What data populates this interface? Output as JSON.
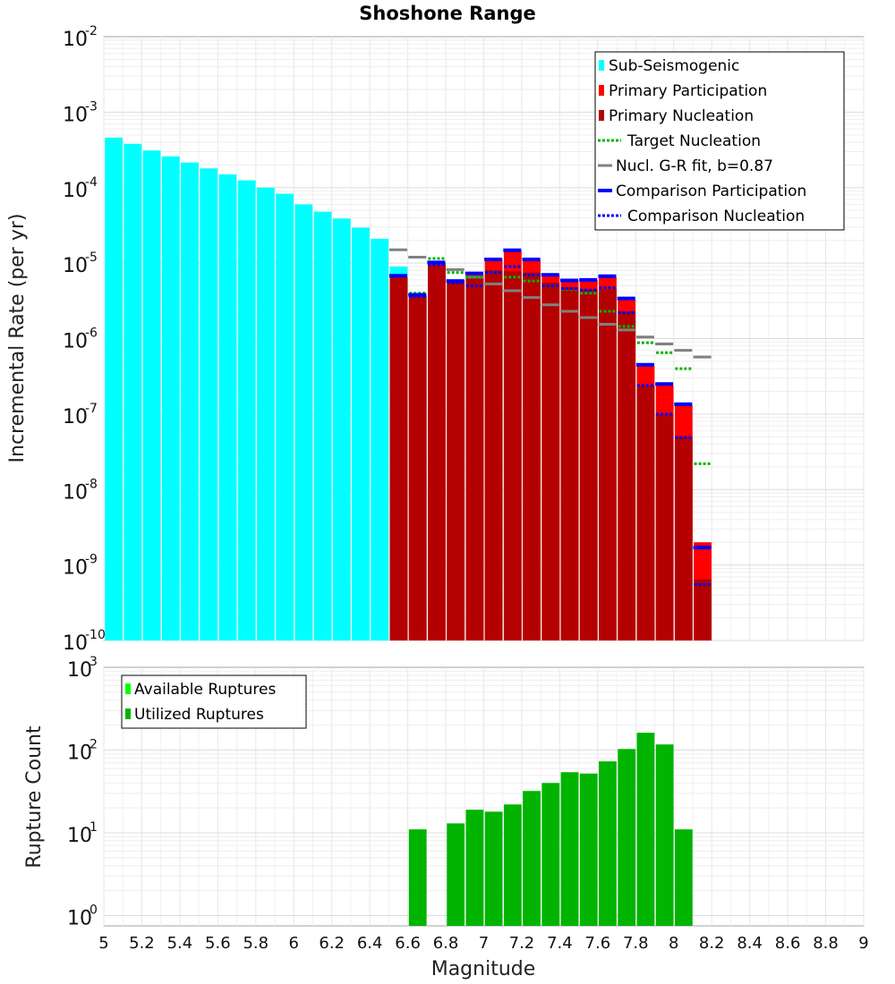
{
  "chart_data": [
    {
      "type": "bar",
      "title": "Shoshone Range",
      "xlabel": "",
      "ylabel": "Incremental Rate (per yr)",
      "yscale": "log",
      "ylim": [
        1e-10,
        0.01
      ],
      "xlim": [
        5,
        9
      ],
      "ytick_labels": [
        {
          "base": "10",
          "exp": "-10",
          "value": 1e-10
        },
        {
          "base": "10",
          "exp": "-9",
          "value": 1e-09
        },
        {
          "base": "10",
          "exp": "-8",
          "value": 1e-08
        },
        {
          "base": "10",
          "exp": "-7",
          "value": 1e-07
        },
        {
          "base": "10",
          "exp": "-6",
          "value": 1e-06
        },
        {
          "base": "10",
          "exp": "-5",
          "value": 1e-05
        },
        {
          "base": "10",
          "exp": "-4",
          "value": 0.0001
        },
        {
          "base": "10",
          "exp": "-3",
          "value": 0.001
        },
        {
          "base": "10",
          "exp": "-2",
          "value": 0.01
        }
      ],
      "legend_position": "top-right",
      "legend": [
        {
          "label": "Sub-Seismogenic",
          "color": "#00ffff",
          "style": "bar"
        },
        {
          "label": "Primary Participation",
          "color": "#ff0000",
          "style": "bar"
        },
        {
          "label": "Primary Nucleation",
          "color": "#b40000",
          "style": "bar"
        },
        {
          "label": "Target Nucleation",
          "color": "#00b400",
          "style": "dotted"
        },
        {
          "label": "Nucl. G-R fit, b=0.87",
          "color": "#808080",
          "style": "solid"
        },
        {
          "label": "Comparison Participation",
          "color": "#0000ff",
          "style": "solid-thick"
        },
        {
          "label": "Comparison Nucleation",
          "color": "#0000ff",
          "style": "dotted"
        }
      ],
      "series": [
        {
          "name": "Sub-Seismogenic",
          "color": "#00ffff",
          "x": [
            5.05,
            5.15,
            5.25,
            5.35,
            5.45,
            5.55,
            5.65,
            5.75,
            5.85,
            5.95,
            6.05,
            6.15,
            6.25,
            6.35,
            6.45,
            6.55
          ],
          "values": [
            0.00046,
            0.00038,
            0.00031,
            0.00026,
            0.000215,
            0.00018,
            0.00015,
            0.000125,
            0.0001,
            8.3e-05,
            6e-05,
            4.8e-05,
            3.9e-05,
            2.95e-05,
            2.1e-05,
            9e-06
          ]
        },
        {
          "name": "Primary Participation",
          "color": "#ff0000",
          "x": [
            6.55,
            6.65,
            6.75,
            6.85,
            6.95,
            7.05,
            7.15,
            7.25,
            7.35,
            7.45,
            7.55,
            7.65,
            7.75,
            7.85,
            7.95,
            8.05,
            8.15
          ],
          "values": [
            6.5e-06,
            3.8e-06,
            1e-05,
            6e-06,
            7e-06,
            1.1e-05,
            1.45e-05,
            1.1e-05,
            7e-06,
            6e-06,
            6e-06,
            6.5e-06,
            3.3e-06,
            4.3e-07,
            2.4e-07,
            1.3e-07,
            2e-09
          ]
        },
        {
          "name": "Primary Nucleation",
          "color": "#b40000",
          "x": [
            6.55,
            6.65,
            6.75,
            6.85,
            6.95,
            7.05,
            7.15,
            7.25,
            7.35,
            7.45,
            7.55,
            7.65,
            7.75,
            7.85,
            7.95,
            8.05,
            8.15
          ],
          "values": [
            6.5e-06,
            3.7e-06,
            1e-05,
            5.5e-06,
            6.3e-06,
            8e-06,
            7.8e-06,
            7.5e-06,
            5.5e-06,
            4.8e-06,
            4.5e-06,
            4.5e-06,
            2.3e-06,
            2.4e-07,
            1e-07,
            5e-08,
            6.5e-10
          ]
        },
        {
          "name": "Target Nucleation",
          "color": "#00b400",
          "x": [
            6.65,
            6.75,
            6.85,
            6.95,
            7.05,
            7.15,
            7.25,
            7.35,
            7.45,
            7.55,
            7.65,
            7.75,
            7.85,
            7.95,
            8.05,
            8.15
          ],
          "values": [
            4e-06,
            1.15e-05,
            7.5e-06,
            6.5e-06,
            7.5e-06,
            6.5e-06,
            5.8e-06,
            5e-06,
            4.5e-06,
            4e-06,
            2.3e-06,
            1.45e-06,
            8.8e-07,
            6.5e-07,
            4e-07,
            2.2e-08
          ]
        },
        {
          "name": "Nucl. G-R fit, b=0.87",
          "color": "#808080",
          "x": [
            6.55,
            6.65,
            6.75,
            6.85,
            6.95,
            7.05,
            7.15,
            7.25,
            7.35,
            7.45,
            7.55,
            7.65,
            7.75,
            7.85,
            7.95,
            8.05,
            8.15
          ],
          "values": [
            1.5e-05,
            1.2e-05,
            1e-05,
            8.2e-06,
            6.5e-06,
            5.3e-06,
            4.3e-06,
            3.5e-06,
            2.8e-06,
            2.3e-06,
            1.9e-06,
            1.55e-06,
            1.3e-06,
            1.05e-06,
            8.5e-07,
            7e-07,
            5.7e-07
          ]
        },
        {
          "name": "Comparison Participation",
          "color": "#0000ff",
          "x": [
            6.55,
            6.65,
            6.75,
            6.85,
            6.95,
            7.05,
            7.15,
            7.25,
            7.35,
            7.45,
            7.55,
            7.65,
            7.75,
            7.85,
            7.95,
            8.05,
            8.15
          ],
          "values": [
            6.8e-06,
            3.8e-06,
            1.02e-05,
            5.8e-06,
            7.3e-06,
            1.12e-05,
            1.48e-05,
            1.12e-05,
            7e-06,
            5.9e-06,
            6e-06,
            6.7e-06,
            3.4e-06,
            4.5e-07,
            2.5e-07,
            1.35e-07,
            1.7e-09
          ]
        },
        {
          "name": "Comparison Nucleation",
          "color": "#0000ff",
          "x": [
            6.55,
            6.65,
            6.75,
            6.85,
            6.95,
            7.05,
            7.15,
            7.25,
            7.35,
            7.45,
            7.55,
            7.65,
            7.75,
            7.85,
            7.95,
            8.05,
            8.15
          ],
          "values": [
            6.8e-06,
            3.6e-06,
            9.5e-06,
            5.5e-06,
            5e-06,
            7.5e-06,
            9e-06,
            7e-06,
            5e-06,
            4.6e-06,
            4.4e-06,
            4.7e-06,
            2.2e-06,
            2.4e-07,
            1e-07,
            4.9e-08,
            5.5e-10
          ]
        }
      ]
    },
    {
      "type": "bar",
      "title": "",
      "xlabel": "Magnitude",
      "ylabel": "Rupture Count",
      "yscale": "log",
      "ylim": [
        0.75,
        1000
      ],
      "xlim": [
        5,
        9
      ],
      "xticks": [
        "5",
        "5.2",
        "5.4",
        "5.6",
        "5.8",
        "6",
        "6.2",
        "6.4",
        "6.6",
        "6.8",
        "7",
        "7.2",
        "7.4",
        "7.6",
        "7.8",
        "8",
        "8.2",
        "8.4",
        "8.6",
        "8.8",
        "9"
      ],
      "ytick_labels": [
        {
          "base": "10",
          "exp": "0",
          "value": 1
        },
        {
          "base": "10",
          "exp": "1",
          "value": 10
        },
        {
          "base": "10",
          "exp": "2",
          "value": 100
        },
        {
          "base": "10",
          "exp": "3",
          "value": 1000
        }
      ],
      "legend_position": "top-left",
      "legend": [
        {
          "label": "Available Ruptures",
          "color": "#00ff00",
          "style": "bar"
        },
        {
          "label": "Utilized Ruptures",
          "color": "#00b400",
          "style": "bar"
        }
      ],
      "series": [
        {
          "name": "Utilized Ruptures",
          "color": "#00b400",
          "x": [
            6.65,
            6.85,
            6.95,
            7.05,
            7.15,
            7.25,
            7.35,
            7.45,
            7.55,
            7.65,
            7.75,
            7.85,
            7.95,
            8.05
          ],
          "values": [
            11,
            13,
            19,
            18,
            22,
            32,
            40,
            54,
            52,
            73,
            103,
            162,
            117,
            11
          ]
        }
      ]
    }
  ]
}
